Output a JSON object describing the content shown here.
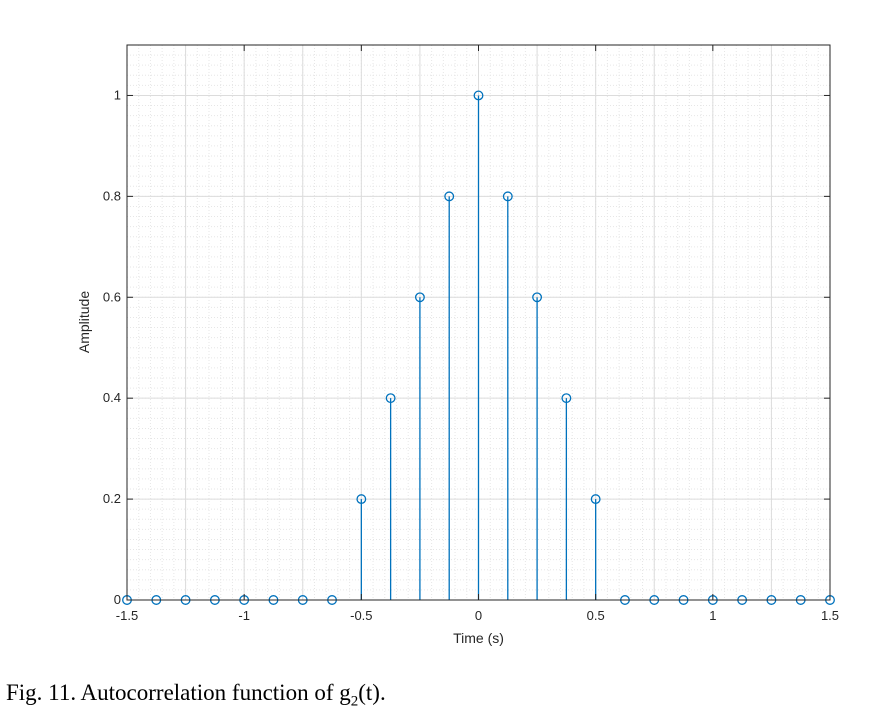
{
  "chart_data": {
    "type": "stem",
    "xlabel": "Time (s)",
    "ylabel": "Amplitude",
    "xlim": [
      -1.5,
      1.5
    ],
    "ylim": [
      0,
      1.1
    ],
    "xticks": [
      -1.5,
      -1,
      -0.5,
      0,
      0.5,
      1,
      1.5
    ],
    "xtick_labels": [
      "-1.5",
      "-1",
      "-0.5",
      "0",
      "0.5",
      "1",
      "1.5"
    ],
    "yticks": [
      0,
      0.2,
      0.4,
      0.6,
      0.8,
      1
    ],
    "ytick_labels": [
      "0",
      "0.2",
      "0.4",
      "0.6",
      "0.8",
      "1"
    ],
    "grid": true,
    "minor_grid": true,
    "color": "#0072BD",
    "x": [
      -1.5,
      -1.375,
      -1.25,
      -1.125,
      -1.0,
      -0.875,
      -0.75,
      -0.625,
      -0.5,
      -0.375,
      -0.25,
      -0.125,
      0,
      0.125,
      0.25,
      0.375,
      0.5,
      0.625,
      0.75,
      0.875,
      1.0,
      1.125,
      1.25,
      1.375,
      1.5
    ],
    "y": [
      0,
      0,
      0,
      0,
      0,
      0,
      0,
      0,
      0.2,
      0.4,
      0.6,
      0.8,
      1.0,
      0.8,
      0.6,
      0.4,
      0.2,
      0,
      0,
      0,
      0,
      0,
      0,
      0,
      0
    ]
  },
  "caption": {
    "prefix": "Fig.  11. Autocorrelation function of g",
    "subscript": "2",
    "suffix": "(t)."
  }
}
